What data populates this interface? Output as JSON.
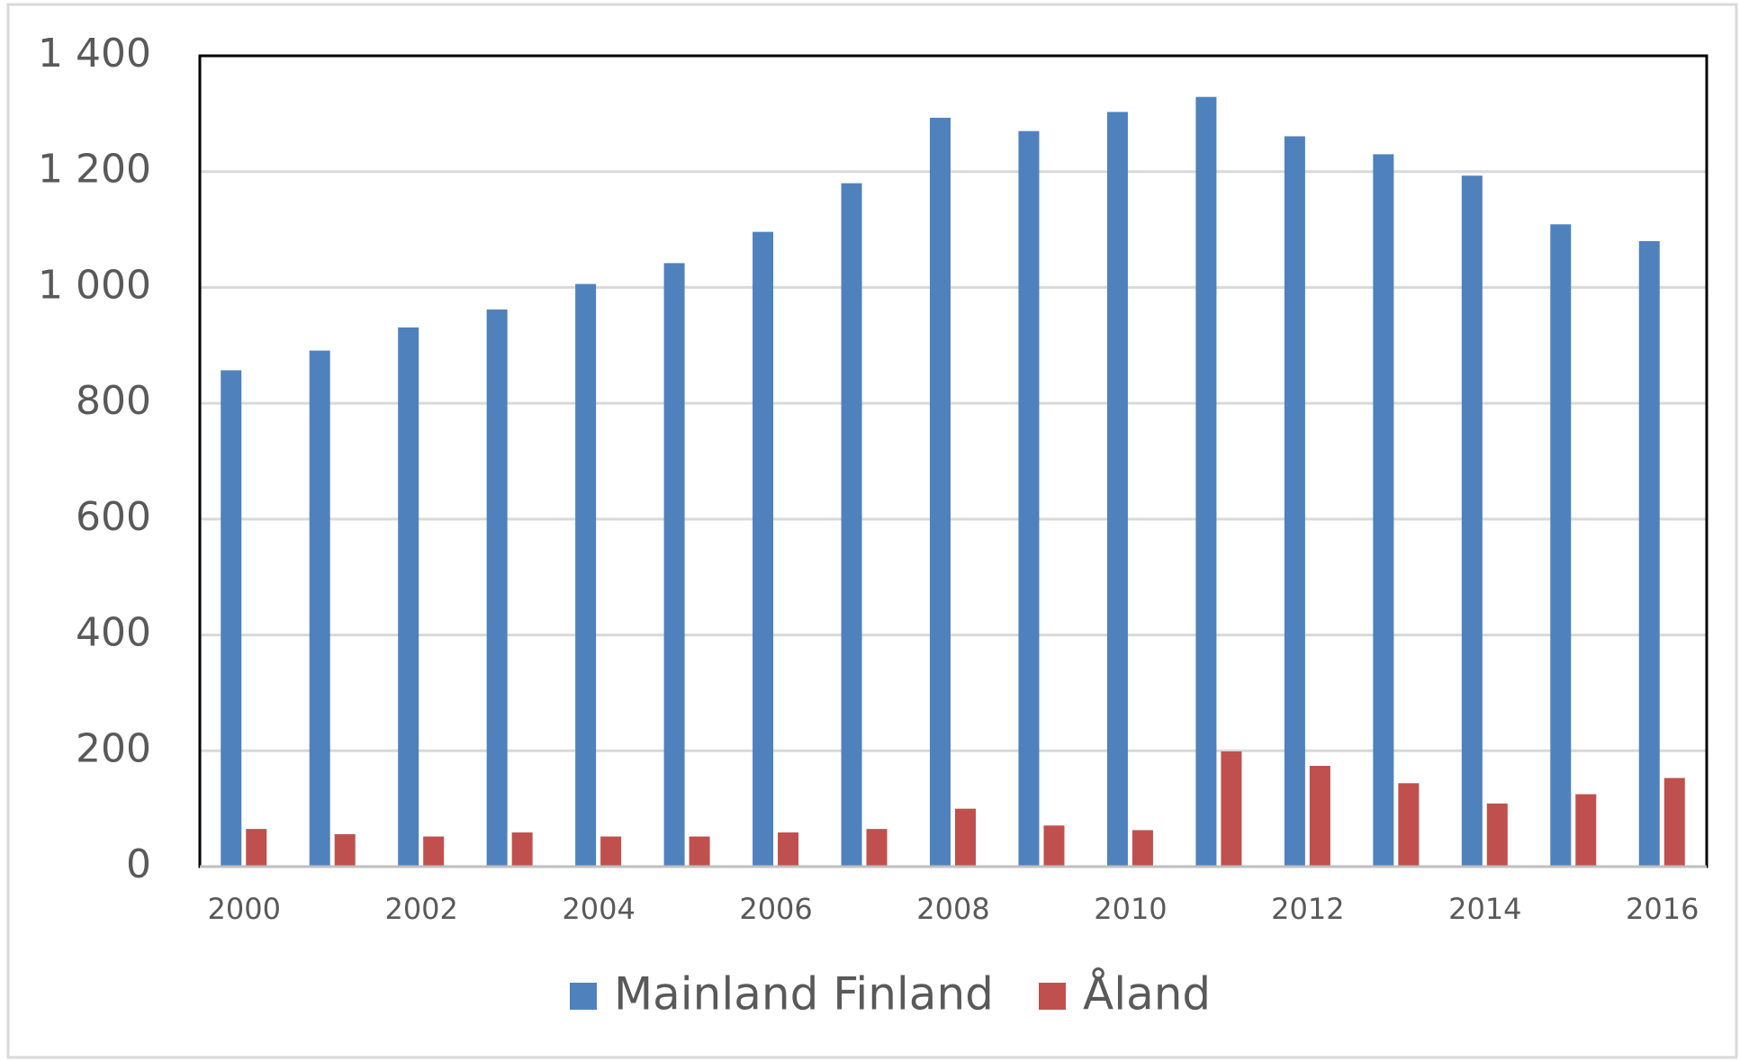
{
  "chart_data": {
    "type": "bar",
    "categories": [
      "2000",
      null,
      "2002",
      null,
      "2004",
      null,
      "2006",
      null,
      "2008",
      null,
      "2010",
      null,
      "2012",
      null,
      "2014",
      null,
      "2016"
    ],
    "series": [
      {
        "name": "Mainland Finland",
        "color": "#4f81bd",
        "values": [
          857,
          891,
          931,
          962,
          1006,
          1042,
          1096,
          1180,
          1293,
          1270,
          1303,
          1329,
          1261,
          1230,
          1193,
          1109,
          1080
        ]
      },
      {
        "name": "Åland",
        "color": "#c0504d",
        "values": [
          65,
          56,
          52,
          59,
          52,
          52,
          59,
          65,
          100,
          71,
          63,
          199,
          174,
          144,
          109,
          125,
          153
        ]
      }
    ],
    "ylim": [
      0,
      1400
    ],
    "yticks": [
      0,
      200,
      400,
      600,
      800,
      {
        "value": 1000,
        "label": "1 000"
      },
      {
        "value": 1200,
        "label": "1 200"
      },
      {
        "value": 1400,
        "label": "1 400"
      }
    ],
    "grid": true,
    "legend": "bottom"
  }
}
